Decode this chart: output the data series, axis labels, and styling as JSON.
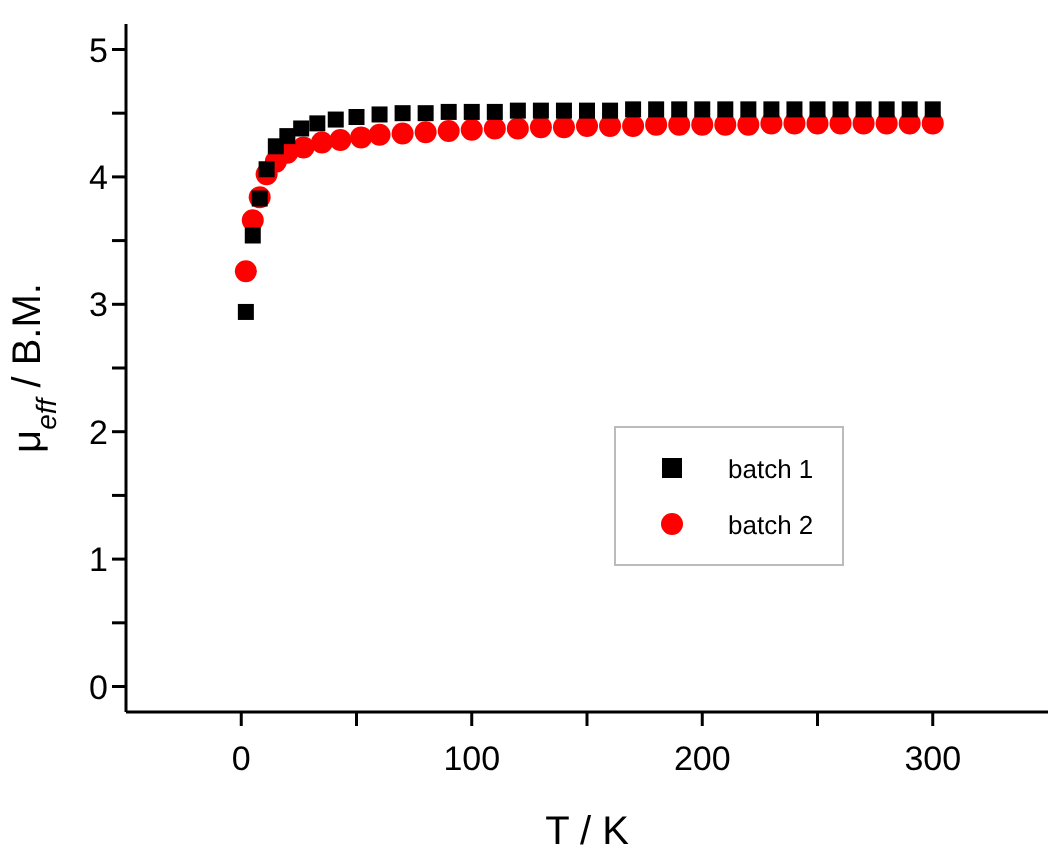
{
  "chart_data": {
    "type": "scatter",
    "xlabel": "T / K",
    "ylabel": "μ$_{eff}$ / B.M.",
    "xlim": [
      -50,
      350
    ],
    "xticks": [
      0,
      {
        "value": 50,
        "label": null
      },
      100,
      {
        "value": 150,
        "label": null
      },
      200,
      {
        "value": 250,
        "label": null
      },
      300
    ],
    "ylim": [
      -0.2,
      5.2
    ],
    "yticks": [
      0,
      {
        "value": 0.5,
        "label": null
      },
      1,
      {
        "value": 1.5,
        "label": null
      },
      2,
      {
        "value": 2.5,
        "label": null
      },
      3,
      {
        "value": 3.5,
        "label": null
      },
      4,
      {
        "value": 4.5,
        "label": null
      },
      5
    ],
    "grid": false,
    "legend": "right",
    "series": [
      {
        "name": "batch 1",
        "color": "#000000",
        "marker": "square",
        "x": [
          2,
          5,
          8,
          11,
          15,
          20,
          26,
          33,
          41,
          50,
          60,
          70,
          80,
          90,
          100,
          110,
          120,
          130,
          140,
          150,
          160,
          170,
          180,
          190,
          200,
          210,
          220,
          230,
          240,
          250,
          260,
          270,
          280,
          290,
          300
        ],
        "values": [
          2.94,
          3.54,
          3.83,
          4.06,
          4.24,
          4.32,
          4.38,
          4.42,
          4.45,
          4.47,
          4.49,
          4.5,
          4.5,
          4.51,
          4.51,
          4.51,
          4.52,
          4.52,
          4.52,
          4.52,
          4.52,
          4.53,
          4.53,
          4.53,
          4.53,
          4.53,
          4.53,
          4.53,
          4.53,
          4.53,
          4.53,
          4.53,
          4.53,
          4.53,
          4.53
        ]
      },
      {
        "name": "batch 2",
        "color": "#ff0000",
        "marker": "circle",
        "x": [
          2,
          5,
          8,
          11,
          15,
          20,
          27,
          35,
          43,
          52,
          60,
          70,
          80,
          90,
          100,
          110,
          120,
          130,
          140,
          150,
          160,
          170,
          180,
          190,
          200,
          210,
          220,
          230,
          240,
          250,
          260,
          270,
          280,
          290,
          300
        ],
        "values": [
          3.26,
          3.66,
          3.84,
          4.02,
          4.12,
          4.19,
          4.23,
          4.27,
          4.29,
          4.31,
          4.33,
          4.34,
          4.35,
          4.36,
          4.37,
          4.38,
          4.38,
          4.39,
          4.39,
          4.4,
          4.4,
          4.4,
          4.41,
          4.41,
          4.41,
          4.41,
          4.41,
          4.42,
          4.42,
          4.42,
          4.42,
          4.42,
          4.42,
          4.42,
          4.42
        ]
      }
    ]
  }
}
